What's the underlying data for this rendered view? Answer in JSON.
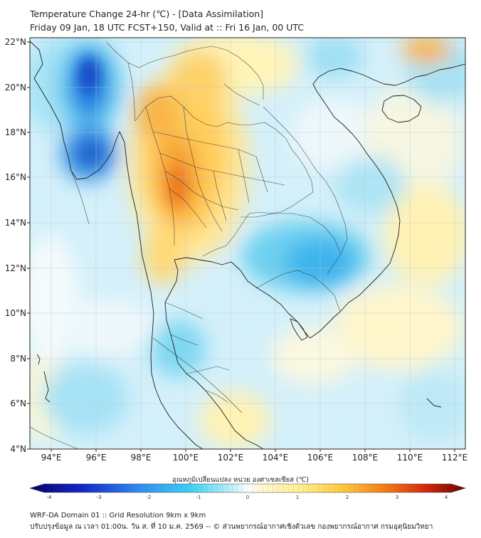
{
  "header": {
    "title": "Temperature Change 24-hr (℃) - [Data Assimilation]",
    "subtitle": "Friday 09 Jan, 18 UTC FCST+150, Valid at :: Fri 16 Jan, 00 UTC"
  },
  "map": {
    "lat_labels": [
      "22°N",
      "20°N",
      "18°N",
      "16°N",
      "14°N",
      "12°N",
      "10°N",
      "8°N",
      "6°N",
      "4°N"
    ],
    "lon_labels": [
      "94°E",
      "96°E",
      "98°E",
      "100°E",
      "102°E",
      "104°E",
      "106°E",
      "108°E",
      "110°E",
      "112°E"
    ],
    "lat_range": [
      4,
      22.3
    ],
    "lon_range": [
      93,
      112.4
    ]
  },
  "colorbar": {
    "title": "อุณหภูมิเปลี่ยนแปลง หน่วย องศาเซลเซียส (℃)",
    "ticks": [
      "-4",
      "-3",
      "-2",
      "-1",
      "0",
      "1",
      "2",
      "3",
      "4"
    ],
    "range": [
      -4,
      4
    ]
  },
  "footer": {
    "line1": "WRF-DA Domain 01 :: Grid Resolution 9km x 9km",
    "line2": "ปรับปรุงข้อมูล ณ เวลา 01:00น. วัน ส. ที่ 10 ม.ค. 2569 -- © ส่วนพยากรณ์อากาศเชิงตัวเลข กองพยากรณ์อากาศ กรมอุตุนิยมวิทยา"
  }
}
